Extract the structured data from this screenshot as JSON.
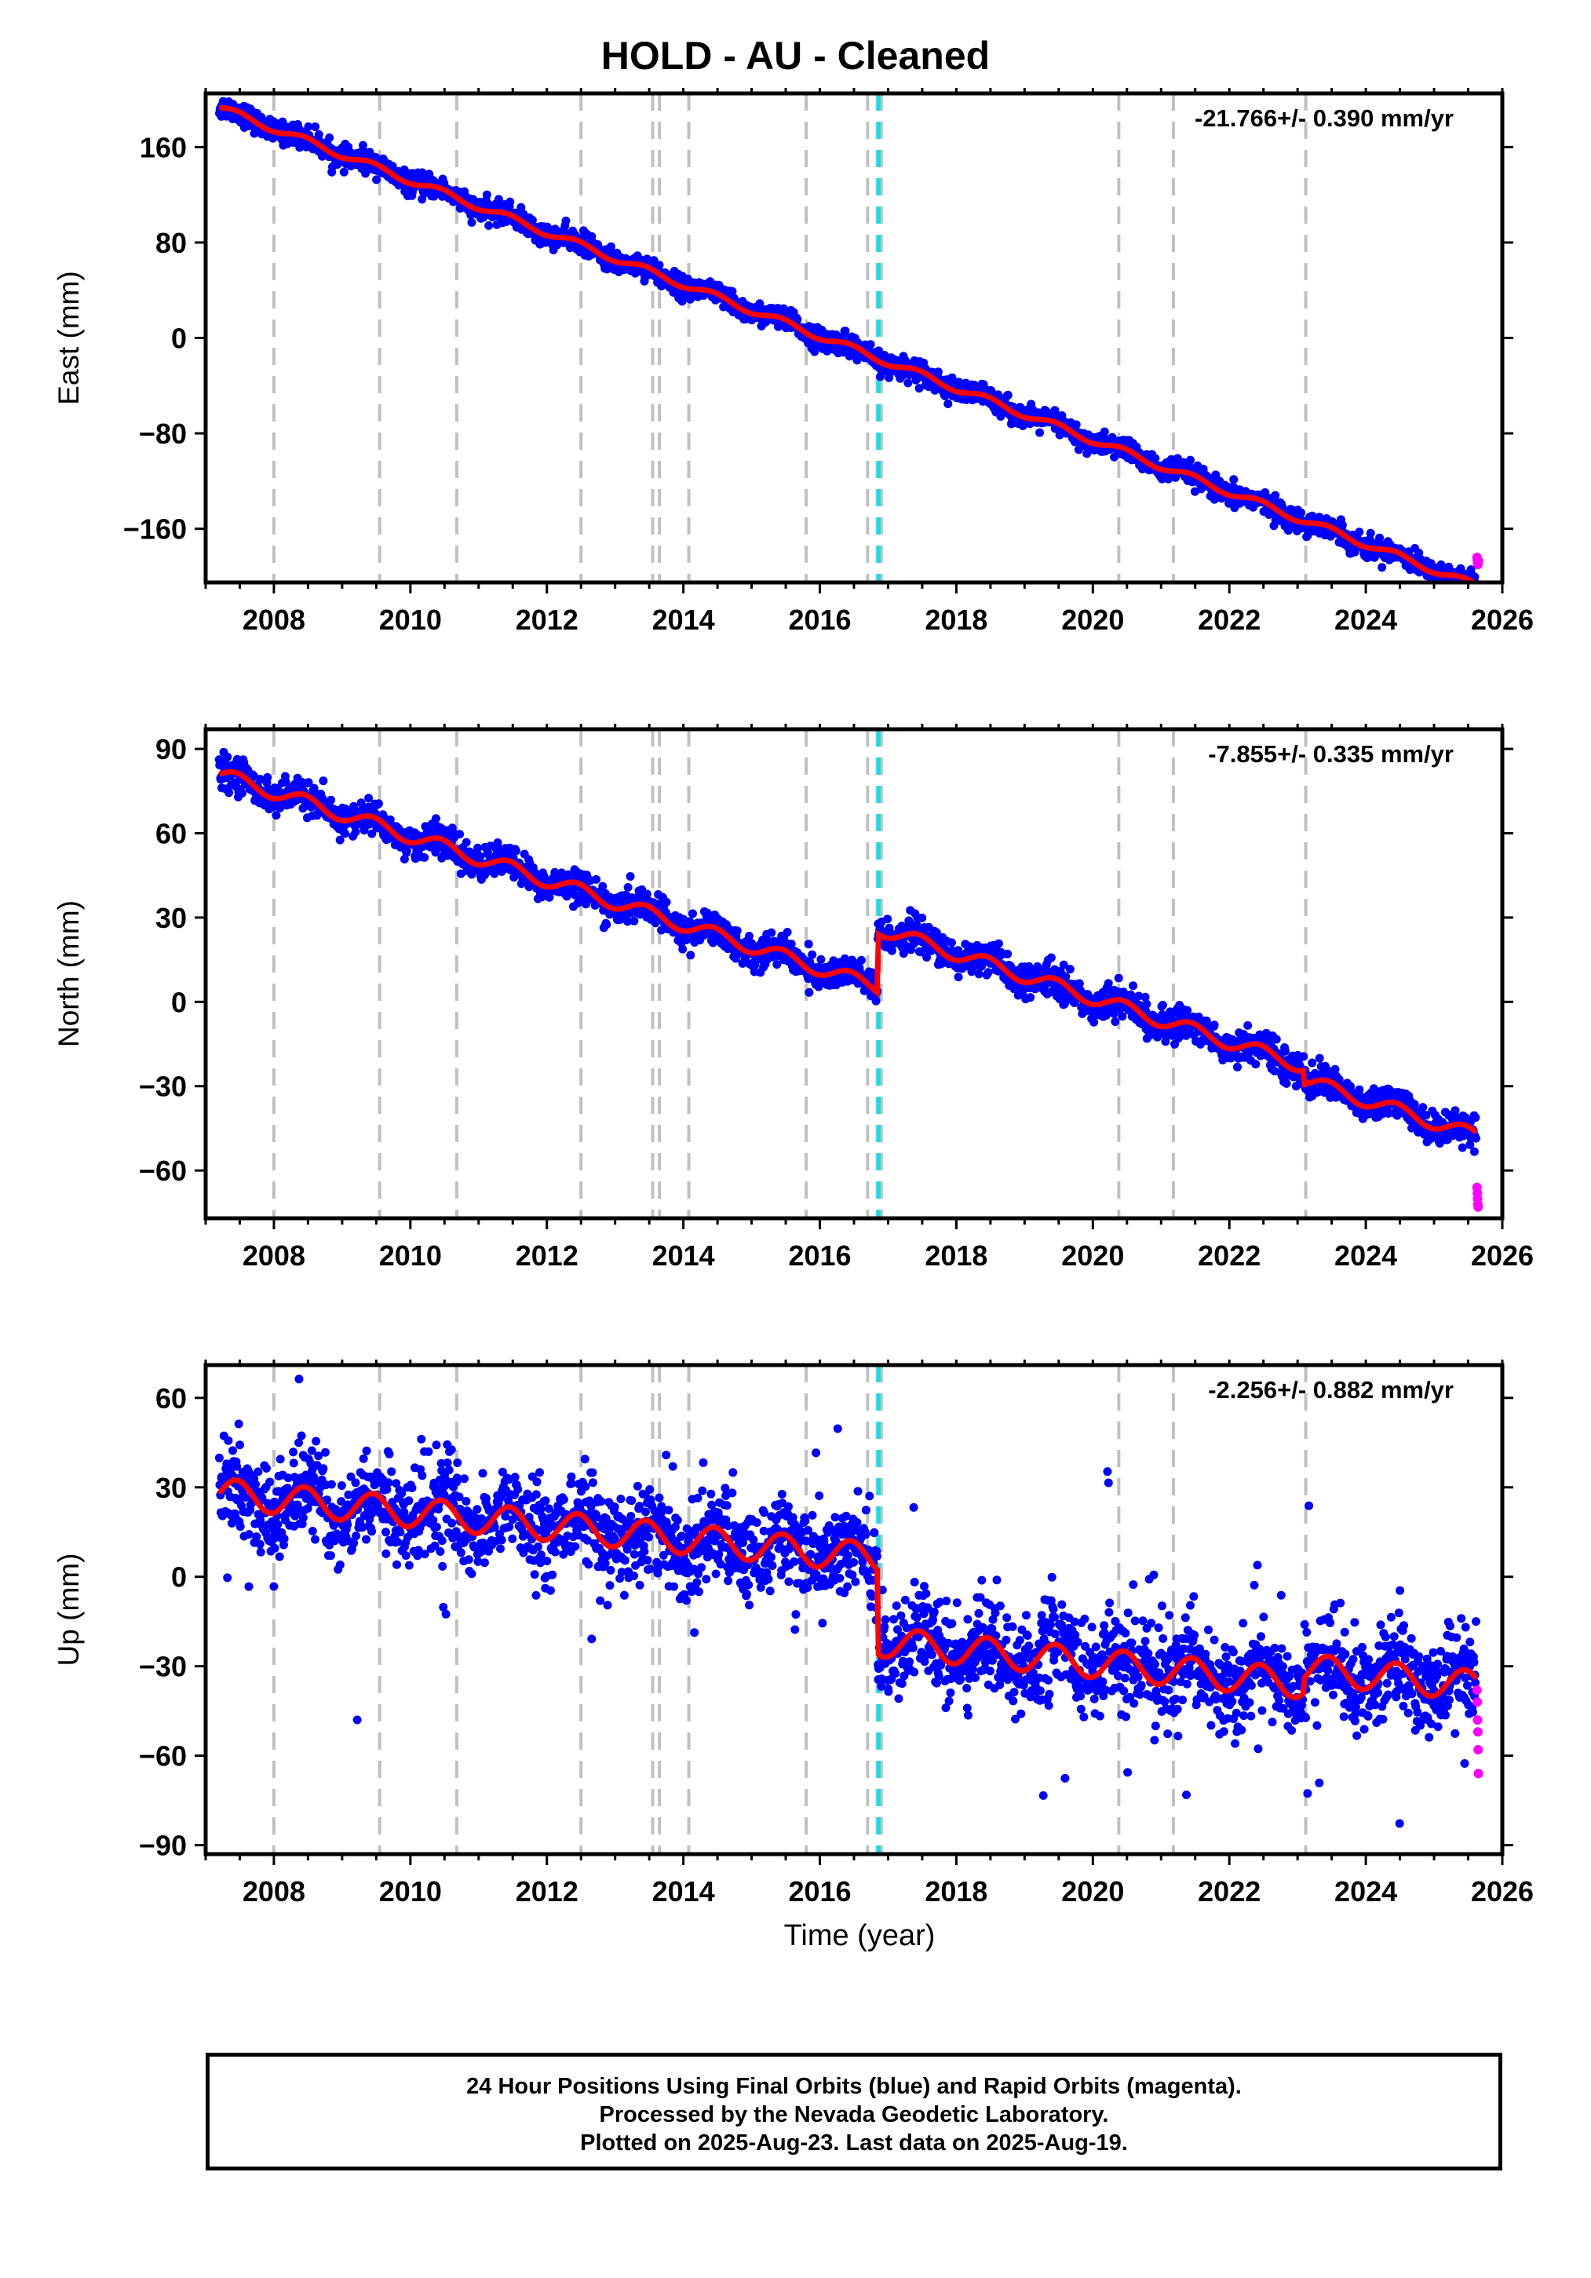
{
  "title": "HOLD  - AU - Cleaned",
  "x_axis_label": "Time (year)",
  "caption": [
    "24 Hour Positions Using Final Orbits (blue) and Rapid Orbits (magenta).",
    "Processed by the Nevada Geodetic Laboratory.",
    "Plotted on 2025-Aug-23. Last data on 2025-Aug-19."
  ],
  "colors": {
    "final_points": "#0000ff",
    "rapid_points": "#ff00ff",
    "model": "#ff0000",
    "equipment_change": "#c0c0c0",
    "earthquake": "#00e5ee"
  },
  "chart_data": [
    {
      "type": "scatter",
      "ylabel": "East (mm)",
      "rate": "-21.766+/- 0.390 mm/yr",
      "xlim": [
        2007.0,
        2026.0
      ],
      "ylim": [
        -205,
        205
      ],
      "xticks": [
        2008,
        2010,
        2012,
        2014,
        2016,
        2018,
        2020,
        2022,
        2024,
        2026
      ],
      "yticks": [
        -160,
        -80,
        0,
        80,
        160
      ],
      "ytick_labels": [
        "−160",
        "−80",
        "0",
        "80",
        "160"
      ],
      "start": 2007.2,
      "end": 2025.62,
      "rate_value": -21.766,
      "start_value": 193,
      "noise": 4.5,
      "annual_amp": 3,
      "offsets": [],
      "scatter_outliers": 0,
      "rapid_values": [
        -184,
        -186,
        -188,
        -190,
        -189,
        -187
      ],
      "grid": false,
      "series": [
        {
          "name": "Final Orbits",
          "color": "#0000ff"
        },
        {
          "name": "Rapid Orbits",
          "color": "#ff00ff"
        }
      ]
    },
    {
      "type": "scatter",
      "ylabel": "North (mm)",
      "rate": "-7.855+/- 0.335 mm/yr",
      "xlim": [
        2007.0,
        2026.0
      ],
      "ylim": [
        -77,
        97
      ],
      "xticks": [
        2008,
        2010,
        2012,
        2014,
        2016,
        2018,
        2020,
        2022,
        2024,
        2026
      ],
      "yticks": [
        -60,
        -30,
        0,
        30,
        60,
        90
      ],
      "ytick_labels": [
        "−60",
        "−30",
        "0",
        "30",
        "60",
        "90"
      ],
      "start": 2007.2,
      "end": 2025.62,
      "rate_value": -7.855,
      "start_value": 81,
      "noise": 2.8,
      "annual_amp": 2.5,
      "offsets": [
        {
          "t": 2016.85,
          "d": 21
        },
        {
          "t": 2023.1,
          "d": -5
        }
      ],
      "scatter_outliers": 0,
      "rapid_values": [
        -66,
        -68,
        -70,
        -72,
        -73
      ],
      "grid": false,
      "series": [
        {
          "name": "Final Orbits",
          "color": "#0000ff"
        },
        {
          "name": "Rapid Orbits",
          "color": "#ff00ff"
        }
      ]
    },
    {
      "type": "scatter",
      "ylabel": "Up (mm)",
      "rate": "-2.256+/- 0.882 mm/yr",
      "xlim": [
        2007.0,
        2026.0
      ],
      "ylim": [
        -93,
        71
      ],
      "xticks": [
        2008,
        2010,
        2012,
        2014,
        2016,
        2018,
        2020,
        2022,
        2024,
        2026
      ],
      "yticks": [
        -90,
        -60,
        -30,
        0,
        30,
        60
      ],
      "ytick_labels": [
        "−90",
        "−60",
        "−30",
        "0",
        "30",
        "60"
      ],
      "start": 2007.2,
      "end": 2025.62,
      "rate_value": -2.256,
      "start_value": 28,
      "noise": 7.5,
      "annual_amp": 5,
      "offsets": [
        {
          "t": 2016.85,
          "d": -28
        },
        {
          "t": 2023.1,
          "d": 5
        }
      ],
      "scatter_outliers": 1,
      "rapid_values": [
        -38,
        -42,
        -48,
        -52,
        -58,
        -66
      ],
      "grid": false,
      "series": [
        {
          "name": "Final Orbits",
          "color": "#0000ff"
        },
        {
          "name": "Rapid Orbits",
          "color": "#ff00ff"
        }
      ]
    }
  ],
  "equipment_changes": [
    2008.0,
    2009.55,
    2010.68,
    2012.5,
    2013.55,
    2013.65,
    2014.08,
    2015.8,
    2016.7,
    2016.84,
    2016.9,
    2020.38,
    2021.18,
    2023.12
  ],
  "earthquakes": [
    2016.86
  ]
}
